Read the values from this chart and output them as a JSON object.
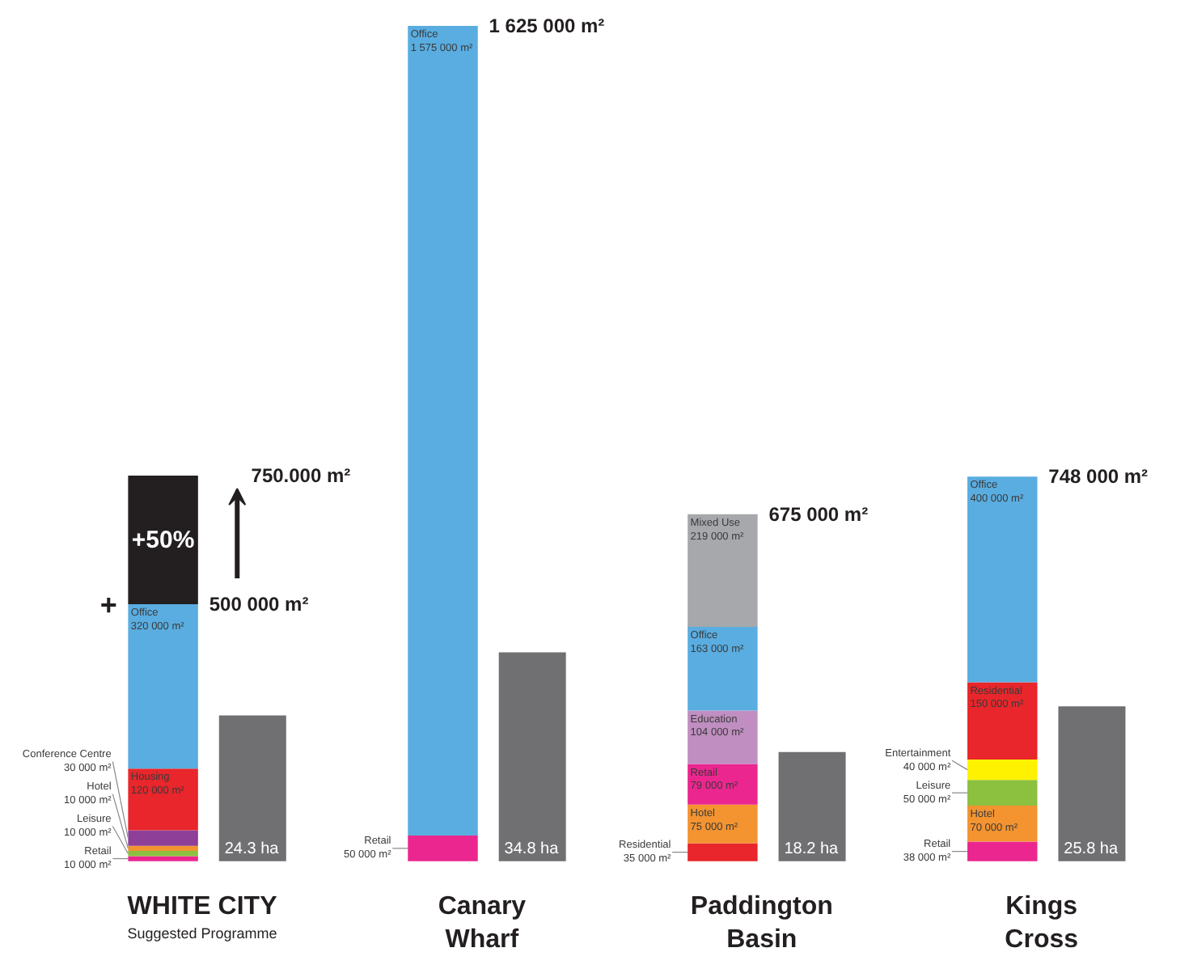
{
  "chart_data": {
    "type": "bar",
    "stacked": true,
    "categories": [
      "WHITE CITY",
      "Canary\nWharf",
      "Paddington\nBasin",
      "Kings\nCross"
    ],
    "series": [
      {
        "colors": [
          "#ec268f",
          "#ec268f",
          "#e8262b",
          "#ec268f"
        ],
        "values": [
          10000,
          50000,
          35000,
          38000
        ],
        "value_labels": [
          "Retail\n10 000 m²",
          "Retail\n50 000 m²",
          "Residential\n35 000 m²",
          "Retail\n38 000 m²"
        ]
      },
      {
        "colors": [
          "#8cc03f",
          "#5aade0",
          "#f39431",
          "#f39431"
        ],
        "values": [
          10000,
          1575000,
          75000,
          70000
        ],
        "value_labels": [
          "Leisure\n10 000 m²",
          "Office\n1 575 000 m²",
          "Hotel\n75 000 m²",
          "Hotel\n70 000 m²"
        ]
      },
      {
        "colors": [
          "#f39431",
          null,
          "#ec268f",
          "#8cc03f"
        ],
        "values": [
          10000,
          null,
          79000,
          50000
        ],
        "value_labels": [
          "Hotel\n10 000 m²",
          null,
          "Retail\n79 000 m²",
          "Leisure\n50 000 m²"
        ]
      },
      {
        "colors": [
          "#8e3f97",
          null,
          "#c08ec0",
          "#fff200"
        ],
        "values": [
          30000,
          null,
          104000,
          40000
        ],
        "value_labels": [
          "Conference Centre\n30 000 m²",
          null,
          "Education\n104 000 m²",
          "Entertainment\n40 000 m²"
        ]
      },
      {
        "colors": [
          "#e8262b",
          null,
          "#5aade0",
          "#e8262b"
        ],
        "values": [
          120000,
          null,
          163000,
          150000
        ],
        "value_labels": [
          "Housing\n120 000 m²",
          null,
          "Office\n163 000 m²",
          "Residential\n150 000 m²"
        ]
      },
      {
        "colors": [
          "#5aade0",
          null,
          "#a6a8ab",
          "#5aade0"
        ],
        "values": [
          320000,
          null,
          219000,
          400000
        ],
        "value_labels": [
          "Office\n320 000 m²",
          null,
          "Mixed Use\n219 000 m²",
          "Office\n400 000 m²"
        ]
      },
      {
        "colors": [
          "#231f20",
          null,
          null,
          null
        ],
        "values": [
          250000,
          null,
          null,
          null
        ]
      },
      {
        "axis": "y2",
        "color": "#707073",
        "values": [
          24.3,
          34.8,
          18.2,
          25.8
        ],
        "value_labels": [
          "24.3 ha",
          "34.8 ha",
          "18.2 ha",
          "25.8 ha"
        ]
      }
    ],
    "annotations": [
      "Suggested Programme",
      "+",
      "+50%",
      {
        "text": "750.000 m²",
        "x": "WHITE CITY",
        "y": 750000
      },
      {
        "text": "500 000 m²",
        "x": "WHITE CITY",
        "y": 500000
      },
      {
        "text": "1 625 000 m²",
        "x": "Canary\nWharf",
        "y": 1625000
      },
      {
        "text": "675 000 m²",
        "x": "Paddington\nBasin",
        "y": 675000
      },
      {
        "text": "748 000 m²",
        "x": "Kings\nCross",
        "y": 748000
      }
    ]
  }
}
